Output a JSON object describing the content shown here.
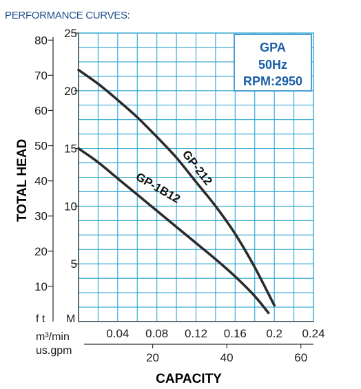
{
  "header": {
    "title": "PERFORMANCE CURVES:"
  },
  "legend_box": {
    "lines": [
      "GPA",
      "50Hz",
      "RPM:2950"
    ]
  },
  "chart_data": {
    "type": "line",
    "xlabel": "CAPACITY",
    "ylabel": "TOTAL HEAD",
    "x_unit_primary": "m³/min",
    "x_unit_secondary": "us.gpm",
    "y_unit_primary": "M",
    "y_unit_secondary": "f t",
    "xlim": [
      0,
      0.24
    ],
    "ylim": [
      0,
      25
    ],
    "x_ticks": [
      0.04,
      0.08,
      0.12,
      0.16,
      0.2,
      0.24
    ],
    "x_tick_labels": [
      "0.04",
      "0.08",
      "0.12",
      "0.16",
      "0.2",
      "0.24"
    ],
    "y_ticks_m": [
      5,
      10,
      15,
      20,
      25
    ],
    "y_tick_labels_m": [
      "5",
      "10",
      "15",
      "20",
      "25"
    ],
    "y_ticks_ft": [
      10,
      20,
      30,
      40,
      50,
      60,
      70,
      80
    ],
    "y_tick_labels_ft": [
      "10",
      "20",
      "30",
      "40",
      "50",
      "60",
      "70",
      "80"
    ],
    "x_ticks_gpm": [
      20,
      40,
      60
    ],
    "x_tick_labels_gpm": [
      "20",
      "40",
      "60"
    ],
    "grid": true,
    "series": [
      {
        "name": "GP-212",
        "x": [
          0,
          0.02,
          0.04,
          0.06,
          0.08,
          0.1,
          0.12,
          0.14,
          0.16,
          0.18,
          0.2
        ],
        "y": [
          21.8,
          20.6,
          19.2,
          17.7,
          16.0,
          14.2,
          12.1,
          10.0,
          7.6,
          4.7,
          1.4
        ]
      },
      {
        "name": "GP-1B12",
        "x": [
          0,
          0.02,
          0.04,
          0.06,
          0.08,
          0.1,
          0.12,
          0.14,
          0.16,
          0.18,
          0.194
        ],
        "y": [
          15.0,
          13.8,
          12.4,
          11.0,
          9.6,
          8.2,
          6.8,
          5.4,
          3.9,
          2.2,
          0.75
        ]
      }
    ],
    "series_colors": {
      "curve": "#2b2b2b",
      "grid": "#29a3cf",
      "legend_border": "#4a9fd6",
      "legend_text": "#1a5ea8"
    }
  }
}
